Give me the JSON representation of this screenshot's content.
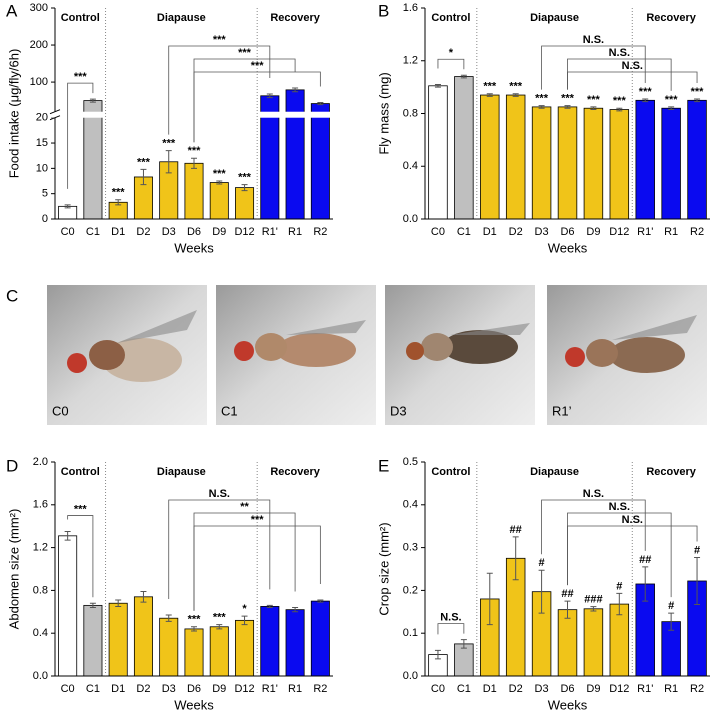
{
  "chart_data": [
    {
      "panel": "A",
      "type": "bar",
      "ylabel": "Food intake (μg/fly/6h)",
      "xlabel": "Weeks",
      "categories": [
        "C0",
        "C1",
        "D1",
        "D2",
        "D3",
        "D6",
        "D9",
        "D12",
        "R1'",
        "R1",
        "R2"
      ],
      "values": [
        2.5,
        50,
        3.3,
        8.3,
        11.3,
        11,
        7.2,
        6.2,
        63,
        79,
        42
      ],
      "errors": [
        0.3,
        4,
        0.5,
        1.5,
        2.2,
        1,
        0.3,
        0.6,
        5,
        5,
        3
      ],
      "colors": [
        "#ffffff",
        "#bfbfbf",
        "#f0c419",
        "#f0c419",
        "#f0c419",
        "#f0c419",
        "#f0c419",
        "#f0c419",
        "#0a0af0",
        "#0a0af0",
        "#0a0af0"
      ],
      "significance": [
        null,
        null,
        "***",
        "***",
        "***",
        "***",
        "***",
        "***",
        null,
        null,
        null
      ],
      "ylim": [
        0,
        20
      ],
      "yticks": [
        0,
        5,
        10,
        15,
        20
      ],
      "ylim_upper": [
        20,
        300
      ],
      "yticks_upper": [
        100,
        200,
        300
      ],
      "axis_break": true,
      "groups": [
        {
          "name": "Control",
          "from": "C0",
          "to": "C1"
        },
        {
          "name": "Diapause",
          "from": "D1",
          "to": "D12"
        },
        {
          "name": "Recovery",
          "from": "R1'",
          "to": "R2"
        }
      ],
      "comparisons": [
        {
          "from": "C0",
          "to": "C1",
          "label": "***"
        },
        {
          "from": "D3",
          "to": "R1'",
          "label": "***"
        },
        {
          "from": "D6",
          "to": "R1",
          "label": "***"
        },
        {
          "from": "D6",
          "to": "R2",
          "label": "***"
        }
      ]
    },
    {
      "panel": "B",
      "type": "bar",
      "ylabel": "Fly mass (mg)",
      "xlabel": "Weeks",
      "categories": [
        "C0",
        "C1",
        "D1",
        "D2",
        "D3",
        "D6",
        "D9",
        "D12",
        "R1'",
        "R1",
        "R2"
      ],
      "values": [
        1.01,
        1.08,
        0.94,
        0.94,
        0.85,
        0.85,
        0.84,
        0.83,
        0.9,
        0.84,
        0.9
      ],
      "errors": [
        0.01,
        0.01,
        0.01,
        0.01,
        0.01,
        0.01,
        0.01,
        0.01,
        0.01,
        0.01,
        0.01
      ],
      "colors": [
        "#ffffff",
        "#bfbfbf",
        "#f0c419",
        "#f0c419",
        "#f0c419",
        "#f0c419",
        "#f0c419",
        "#f0c419",
        "#0a0af0",
        "#0a0af0",
        "#0a0af0"
      ],
      "significance": [
        null,
        null,
        "***",
        "***",
        "***",
        "***",
        "***",
        "***",
        "***",
        "***",
        "***"
      ],
      "ylim": [
        0,
        1.6
      ],
      "yticks": [
        {
          "value": 0,
          "label": "0.0"
        },
        {
          "value": 0.4,
          "label": "0.4"
        },
        {
          "value": 0.8,
          "label": "0.8"
        },
        {
          "value": 1.2,
          "label": "1.2"
        },
        {
          "value": 1.6,
          "label": "1.6"
        }
      ],
      "groups": [
        {
          "name": "Control",
          "from": "C0",
          "to": "C1"
        },
        {
          "name": "Diapause",
          "from": "D1",
          "to": "D12"
        },
        {
          "name": "Recovery",
          "from": "R1'",
          "to": "R2"
        }
      ],
      "comparisons": [
        {
          "from": "C0",
          "to": "C1",
          "label": "*"
        },
        {
          "from": "D3",
          "to": "R1'",
          "label": "N.S."
        },
        {
          "from": "D6",
          "to": "R1",
          "label": "N.S."
        },
        {
          "from": "D6",
          "to": "R2",
          "label": "N.S."
        }
      ]
    },
    {
      "panel": "D",
      "type": "bar",
      "ylabel": "Abdomen size (mm²)",
      "xlabel": "Weeks",
      "categories": [
        "C0",
        "C1",
        "D1",
        "D2",
        "D3",
        "D6",
        "D9",
        "D12",
        "R1'",
        "R1",
        "R2"
      ],
      "values": [
        1.31,
        0.66,
        0.68,
        0.74,
        0.54,
        0.44,
        0.46,
        0.52,
        0.65,
        0.62,
        0.7
      ],
      "errors": [
        0.04,
        0.02,
        0.03,
        0.05,
        0.03,
        0.02,
        0.02,
        0.04,
        0.01,
        0.02,
        0.01
      ],
      "colors": [
        "#ffffff",
        "#bfbfbf",
        "#f0c419",
        "#f0c419",
        "#f0c419",
        "#f0c419",
        "#f0c419",
        "#f0c419",
        "#0a0af0",
        "#0a0af0",
        "#0a0af0"
      ],
      "significance": [
        null,
        null,
        null,
        null,
        null,
        "***",
        "***",
        "*",
        null,
        null,
        null
      ],
      "ylim": [
        0,
        2.0
      ],
      "yticks": [
        {
          "value": 0,
          "label": "0.0"
        },
        {
          "value": 0.4,
          "label": "0.4"
        },
        {
          "value": 0.8,
          "label": "0.8"
        },
        {
          "value": 1.2,
          "label": "1.2"
        },
        {
          "value": 1.6,
          "label": "1.6"
        },
        {
          "value": 2.0,
          "label": "2.0"
        }
      ],
      "groups": [
        {
          "name": "Control",
          "from": "C0",
          "to": "C1"
        },
        {
          "name": "Diapause",
          "from": "D1",
          "to": "D12"
        },
        {
          "name": "Recovery",
          "from": "R1'",
          "to": "R2"
        }
      ],
      "comparisons": [
        {
          "from": "C0",
          "to": "C1",
          "label": "***"
        },
        {
          "from": "D3",
          "to": "R1'",
          "label": "N.S."
        },
        {
          "from": "D6",
          "to": "R1",
          "label": "**"
        },
        {
          "from": "D6",
          "to": "R2",
          "label": "***"
        }
      ]
    },
    {
      "panel": "E",
      "type": "bar",
      "ylabel": "Crop size (mm²)",
      "xlabel": "Weeks",
      "categories": [
        "C0",
        "C1",
        "D1",
        "D2",
        "D3",
        "D6",
        "D9",
        "D12",
        "R1'",
        "R1",
        "R2"
      ],
      "values": [
        0.05,
        0.075,
        0.18,
        0.275,
        0.197,
        0.155,
        0.157,
        0.168,
        0.215,
        0.127,
        0.222
      ],
      "errors": [
        0.01,
        0.01,
        0.06,
        0.05,
        0.05,
        0.02,
        0.005,
        0.025,
        0.04,
        0.02,
        0.055
      ],
      "colors": [
        "#ffffff",
        "#bfbfbf",
        "#f0c419",
        "#f0c419",
        "#f0c419",
        "#f0c419",
        "#f0c419",
        "#f0c419",
        "#0a0af0",
        "#0a0af0",
        "#0a0af0"
      ],
      "significance": [
        null,
        null,
        null,
        "##",
        "#",
        "##",
        "###",
        "#",
        "##",
        "#",
        "#"
      ],
      "ylim": [
        0,
        0.5
      ],
      "yticks": [
        {
          "value": 0,
          "label": "0.0"
        },
        0.1,
        0.2,
        0.3,
        0.4,
        0.5
      ],
      "groups": [
        {
          "name": "Control",
          "from": "C0",
          "to": "C1"
        },
        {
          "name": "Diapause",
          "from": "D1",
          "to": "D12"
        },
        {
          "name": "Recovery",
          "from": "R1'",
          "to": "R2"
        }
      ],
      "comparisons": [
        {
          "from": "C0",
          "to": "C1",
          "label": "N.S."
        },
        {
          "from": "D3",
          "to": "R1'",
          "label": "N.S."
        },
        {
          "from": "D6",
          "to": "R1",
          "label": "N.S."
        },
        {
          "from": "D6",
          "to": "R2",
          "label": "N.S."
        }
      ]
    }
  ],
  "photos": {
    "panel": "C",
    "labels": [
      "C0",
      "C1",
      "D3",
      "R1’"
    ]
  }
}
